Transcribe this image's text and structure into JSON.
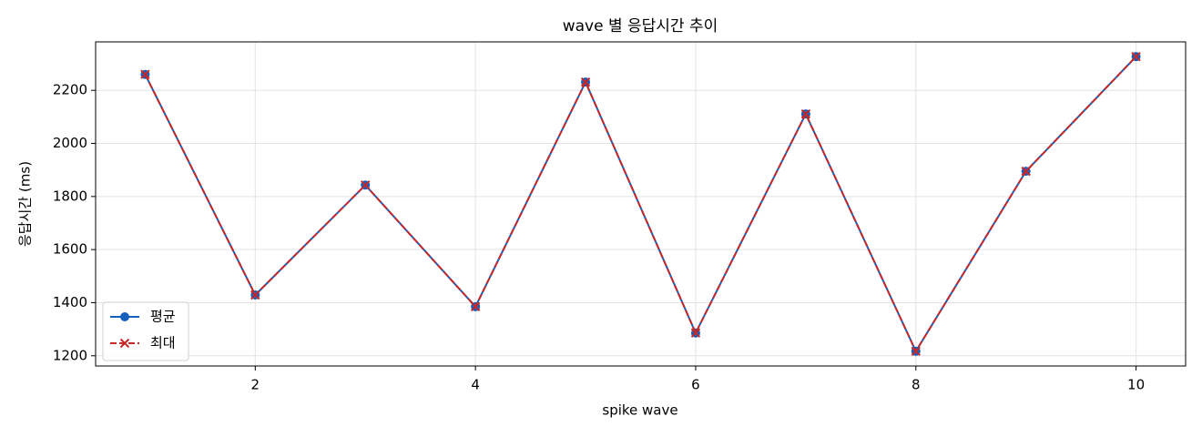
{
  "chart_data": {
    "type": "line",
    "title": "wave 별 응답시간 추이",
    "xlabel": "spike wave",
    "ylabel": "응답시간 (ms)",
    "x": [
      1,
      2,
      3,
      4,
      5,
      6,
      7,
      8,
      9,
      10
    ],
    "series": [
      {
        "name": "평균",
        "color": "#1560bd",
        "marker": "o",
        "linestyle": "solid",
        "values": [
          2260,
          1429,
          1843,
          1385,
          2231,
          1286,
          2111,
          1217,
          1895,
          2327
        ]
      },
      {
        "name": "최대",
        "color": "#c62828",
        "marker": "x",
        "linestyle": "dashed",
        "values": [
          2260,
          1429,
          1843,
          1385,
          2231,
          1286,
          2111,
          1217,
          1895,
          2327
        ]
      }
    ],
    "xlim": [
      0.55,
      10.45
    ],
    "ylim": [
      1161.5,
      2382.5
    ],
    "xticks": [
      2,
      4,
      6,
      8,
      10
    ],
    "yticks": [
      1200,
      1400,
      1600,
      1800,
      2000,
      2200
    ],
    "grid": true,
    "legend": "lower left"
  }
}
